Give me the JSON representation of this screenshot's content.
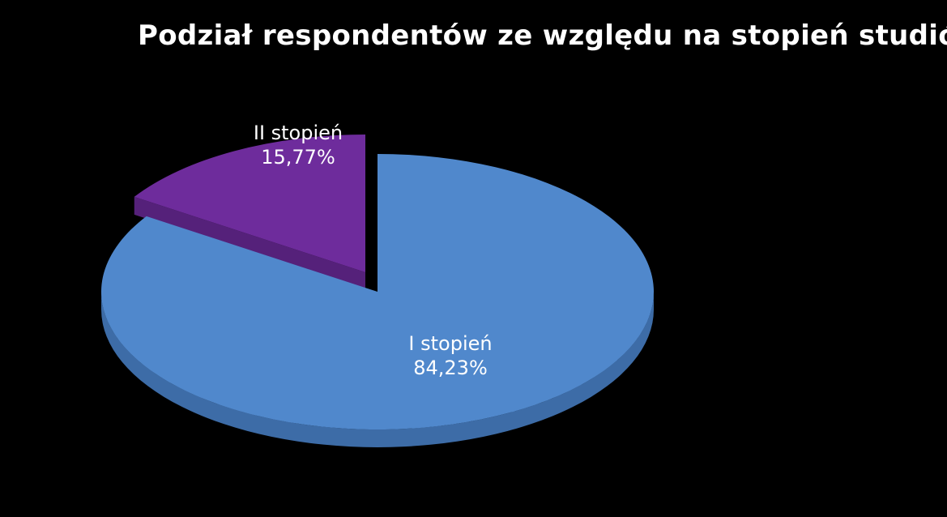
{
  "chart_data": {
    "type": "pie",
    "title": "Podział respondentów ze względu na stopień studiów",
    "slices": [
      {
        "label": "I stopień",
        "percent_label": "84,23%",
        "value": 84.23,
        "color": "#5088cc",
        "side_color": "#3d6ca7"
      },
      {
        "label": "II stopień",
        "percent_label": "15,77%",
        "value": 15.77,
        "color": "#6e2c9c",
        "side_color": "#55217a"
      }
    ],
    "legend": "none",
    "style": "3d-exploded"
  }
}
